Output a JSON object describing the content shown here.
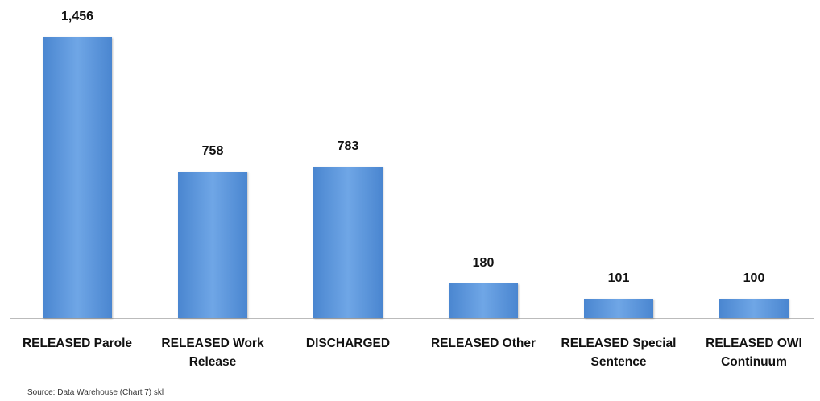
{
  "chart_data": {
    "type": "bar",
    "categories": [
      "RELEASED Parole",
      "RELEASED Work Release",
      "DISCHARGED",
      "RELEASED Other",
      "RELEASED Special Sentence",
      "RELEASED OWI Continuum"
    ],
    "values": [
      1456,
      758,
      783,
      180,
      101,
      100
    ],
    "value_labels": [
      "1,456",
      "758",
      "783",
      "180",
      "101",
      "100"
    ],
    "color": "#5b9be0",
    "source": "Source: Data Warehouse (Chart 7) skl"
  }
}
